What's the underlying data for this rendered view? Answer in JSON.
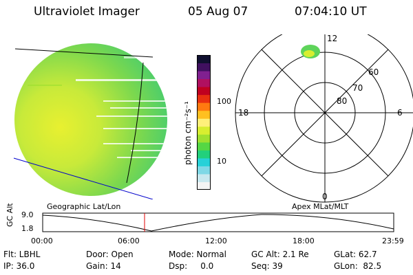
{
  "header": {
    "instrument": "Ultraviolet Imager",
    "date": "05 Aug 07",
    "time": "07:04:10 UT"
  },
  "colorbar": {
    "unit_label": "photon cm⁻²s⁻¹",
    "tick_100": "100",
    "tick_10": "10",
    "colors": [
      "#f4f4f4",
      "#c8e8ef",
      "#7fd8e6",
      "#27d1d8",
      "#22d07c",
      "#55d744",
      "#9fe030",
      "#d8ee30",
      "#fff07a",
      "#ffc020",
      "#ff7a10",
      "#e83010",
      "#c00020",
      "#b01060",
      "#802090",
      "#401060",
      "#101030"
    ]
  },
  "globe": {
    "label": "Geographic Lat/Lon",
    "bg_green": "#5ed45a",
    "core_yellow": "#e8f030"
  },
  "polar": {
    "label": "Apex MLat/MLT",
    "mlt_12": "12",
    "mlt_18": "18",
    "mlt_6": "6",
    "mlt_0": "0",
    "lat_60": "60",
    "lat_70": "70",
    "lat_80": "80"
  },
  "altitude_plot": {
    "ylabel": "GC Alt",
    "ytick_top": "9.0",
    "ytick_bottom": "1.8",
    "xticks": [
      "00:00",
      "06:00",
      "12:00",
      "18:00",
      "23:59"
    ],
    "marker_color": "#e00000"
  },
  "footer": {
    "row1": {
      "flt": "Flt: LBHL",
      "door": "Door: Open",
      "mode": "Mode: Normal",
      "gcalt": "GC Alt: 2.1 Re",
      "glat": "GLat: 62.7"
    },
    "row2": {
      "ip": "IP: 36.0",
      "gain": "Gain: 14",
      "dsp": "Dsp:     0.0",
      "seq": "Seq: 39",
      "glon": "GLon:  82.5"
    }
  }
}
